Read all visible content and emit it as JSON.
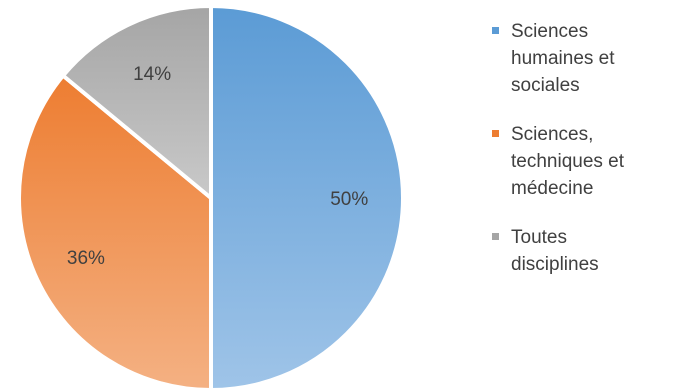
{
  "chart_data": {
    "type": "pie",
    "categories": [
      "Sciences humaines et sociales",
      "Sciences, techniques et médecine",
      "Toutes disciplines"
    ],
    "values": [
      50,
      36,
      14
    ],
    "labels": [
      "50%",
      "36%",
      "14%"
    ],
    "colors": [
      "#5b9bd5",
      "#ed7d31",
      "#a5a5a5"
    ],
    "legend_position": "right",
    "legend": [
      {
        "label": "Sciences\nhumaines et\nsociales",
        "color": "#5b9bd5"
      },
      {
        "label": "Sciences,\ntechniques et\nmédecine",
        "color": "#ed7d31"
      },
      {
        "label": "Toutes\ndisciplines",
        "color": "#a5a5a5"
      }
    ]
  }
}
